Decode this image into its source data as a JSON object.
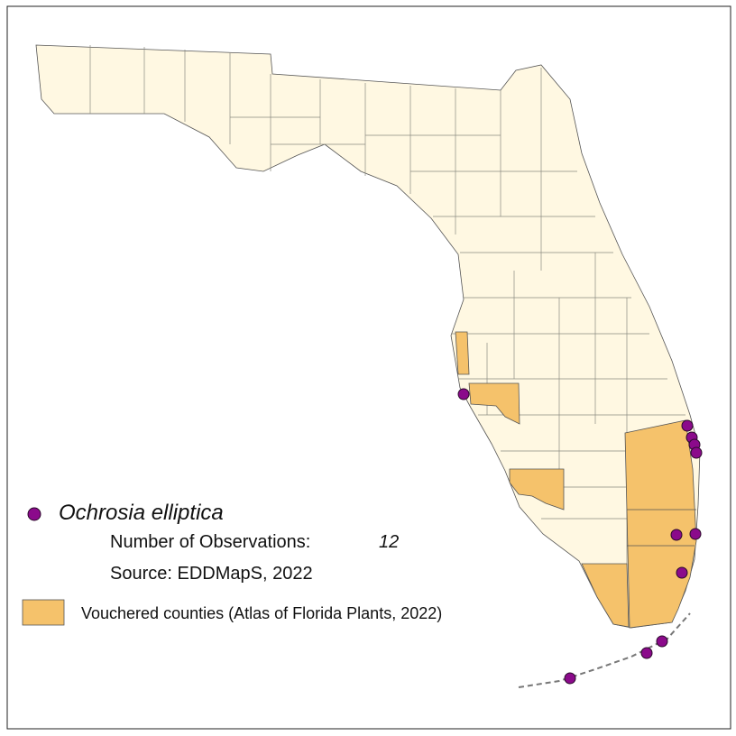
{
  "legend": {
    "species": "Ochrosia elliptica",
    "observations_label": "Number of Observations:",
    "observations_count": "12",
    "source": "Source: EDDMapS, 2022",
    "vouchered_label": "Vouchered counties (Atlas of Florida Plants, 2022)"
  }
}
